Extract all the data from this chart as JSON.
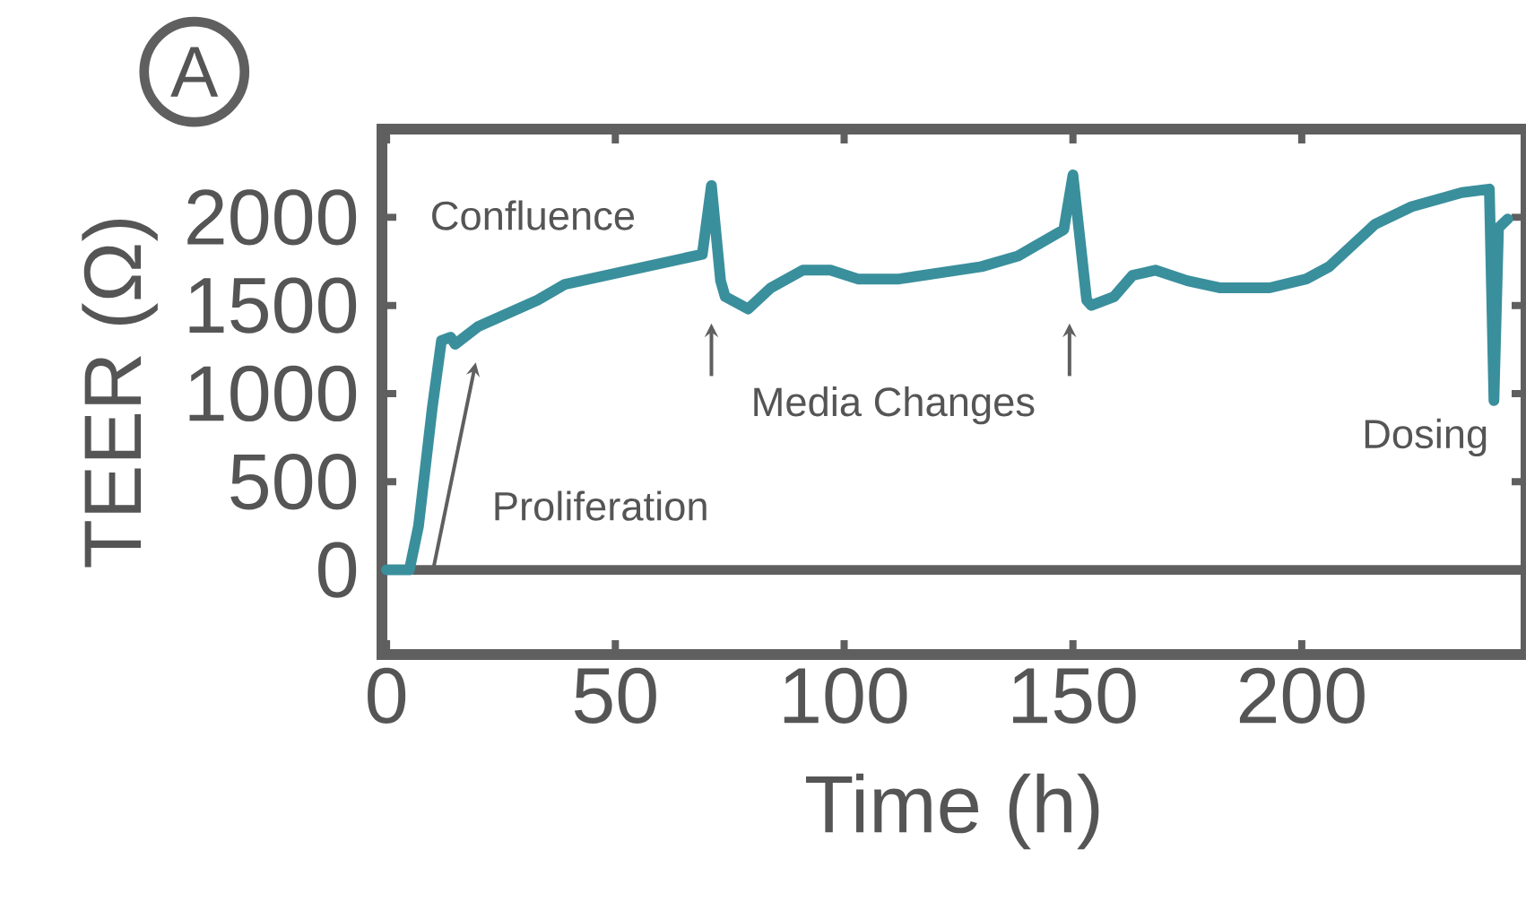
{
  "chart_data": {
    "type": "line",
    "xlabel": "Time (h)",
    "ylabel": "TEER (Ω)",
    "color": "#3a8f9c",
    "x": [
      0,
      5,
      7,
      10,
      12,
      14,
      15,
      20,
      33,
      39,
      69,
      71,
      73,
      74,
      79,
      84,
      91,
      97,
      103,
      112,
      130,
      138,
      148,
      150,
      153,
      154,
      159,
      163,
      168,
      175,
      182,
      193,
      201,
      206,
      216,
      224,
      235,
      241,
      242,
      243,
      245
    ],
    "values": [
      0,
      0,
      250,
      920,
      1300,
      1320,
      1280,
      1380,
      1530,
      1620,
      1790,
      2180,
      1640,
      1550,
      1480,
      1600,
      1700,
      1700,
      1650,
      1650,
      1720,
      1780,
      1930,
      2240,
      1530,
      1500,
      1550,
      1670,
      1700,
      1640,
      1600,
      1600,
      1650,
      1720,
      1960,
      2060,
      2140,
      2160,
      960,
      1940,
      1990
    ],
    "xlim": [
      -1,
      249
    ],
    "ylim": [
      -480,
      2500
    ],
    "xticks": [
      0,
      50,
      100,
      150,
      200
    ],
    "yticks": [
      0,
      500,
      1000,
      1500,
      2000
    ],
    "grid": false,
    "marker": "none",
    "line_style": "solid",
    "ref_lines": [
      {
        "axis": "y",
        "value": 0,
        "color": "#5f5f5f"
      }
    ],
    "annotations": [
      "A",
      "Confluence",
      "Proliferation",
      "Media Changes",
      "Dosing"
    ]
  }
}
